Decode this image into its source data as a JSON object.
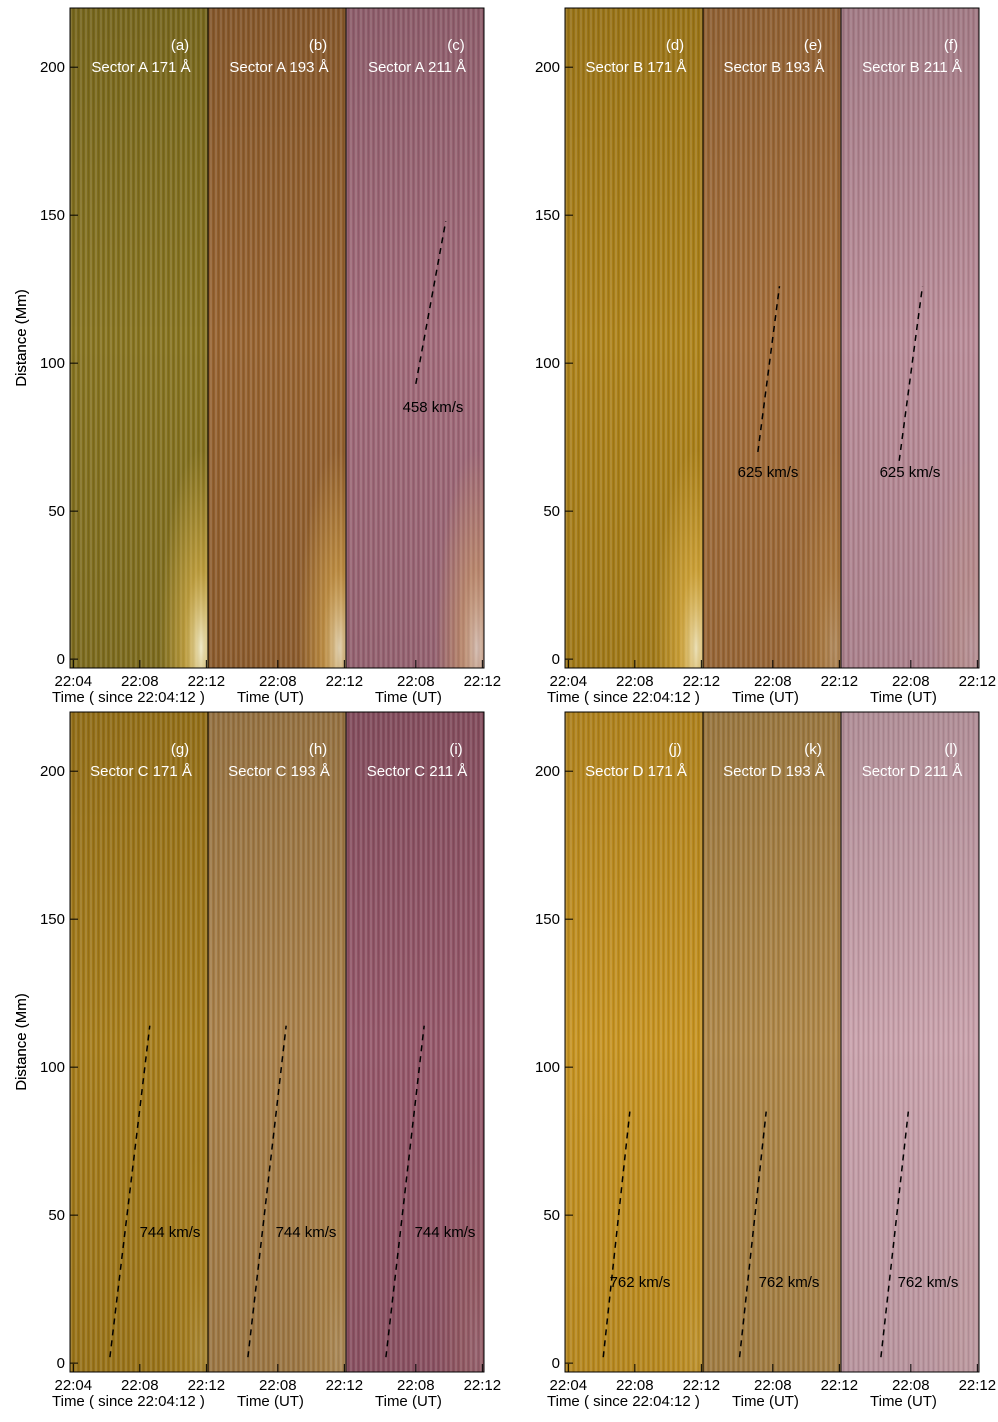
{
  "chart_data": [
    {
      "type": "line",
      "panel_label": "(a)",
      "title": "Sector A 171 Å",
      "ylabel": "Distance (Mm)",
      "xlabel": "Time ( since 22:04:12 )",
      "xlim": [
        -0.2,
        8.1
      ],
      "ylim": [
        -3,
        220
      ],
      "xticks": [
        {
          "value": 0,
          "label": "22:04"
        },
        {
          "value": 4,
          "label": "22:08"
        },
        {
          "value": 8,
          "label": "22:12"
        }
      ],
      "yticks": [
        0,
        50,
        100,
        150,
        200
      ]
    },
    {
      "type": "line",
      "panel_label": "(b)",
      "title": "Sector A 193 Å",
      "xlabel": "Time (UT)",
      "xlim": [
        -0.2,
        8.1
      ],
      "ylim": [
        -3,
        220
      ],
      "xticks": [
        {
          "value": 4,
          "label": "22:08"
        },
        {
          "value": 8,
          "label": "22:12"
        }
      ]
    },
    {
      "type": "line",
      "panel_label": "(c)",
      "title": "Sector A 211 Å",
      "xlabel": "Time (UT)",
      "xlim": [
        -0.2,
        8.1
      ],
      "ylim": [
        -3,
        220
      ],
      "xticks": [
        {
          "value": 4,
          "label": "22:08"
        },
        {
          "value": 8,
          "label": "22:12"
        }
      ],
      "series": [
        {
          "x": [
            4.0,
            5.8
          ],
          "values": [
            93,
            148
          ],
          "color": "#000000",
          "dashed": true
        }
      ],
      "annotation": "458 km/s"
    },
    {
      "type": "line",
      "panel_label": "(d)",
      "title": "Sector B 171 Å",
      "ylabel": "Distance (Mm)",
      "xlabel": "Time ( since 22:04:12 )",
      "xlim": [
        -0.2,
        8.1
      ],
      "ylim": [
        -3,
        220
      ],
      "xticks": [
        {
          "value": 0,
          "label": "22:04"
        },
        {
          "value": 4,
          "label": "22:08"
        },
        {
          "value": 8,
          "label": "22:12"
        }
      ],
      "yticks": [
        0,
        50,
        100,
        150,
        200
      ]
    },
    {
      "type": "line",
      "panel_label": "(e)",
      "title": "Sector B 193 Å",
      "xlabel": "Time (UT)",
      "xlim": [
        -0.2,
        8.1
      ],
      "ylim": [
        -3,
        220
      ],
      "xticks": [
        {
          "value": 4,
          "label": "22:08"
        },
        {
          "value": 8,
          "label": "22:12"
        }
      ],
      "series": [
        {
          "x": [
            3.1,
            4.4
          ],
          "values": [
            70,
            126
          ],
          "color": "#000000",
          "dashed": true
        }
      ],
      "annotation": "625 km/s"
    },
    {
      "type": "line",
      "panel_label": "(f)",
      "title": "Sector B 211 Å",
      "xlabel": "Time (UT)",
      "xlim": [
        -0.2,
        8.1
      ],
      "ylim": [
        -3,
        220
      ],
      "xticks": [
        {
          "value": 4,
          "label": "22:08"
        },
        {
          "value": 8,
          "label": "22:12"
        }
      ],
      "series": [
        {
          "x": [
            3.3,
            4.7
          ],
          "values": [
            67,
            126
          ],
          "color": "#000000",
          "dashed": true
        }
      ],
      "annotation": "625 km/s"
    },
    {
      "type": "line",
      "panel_label": "(g)",
      "title": "Sector C 171 Å",
      "ylabel": "Distance (Mm)",
      "xlabel": "Time ( since 22:04:12 )",
      "xlim": [
        -0.2,
        8.1
      ],
      "ylim": [
        -3,
        220
      ],
      "xticks": [
        {
          "value": 0,
          "label": "22:04"
        },
        {
          "value": 4,
          "label": "22:08"
        },
        {
          "value": 8,
          "label": "22:12"
        }
      ],
      "yticks": [
        0,
        50,
        100,
        150,
        200
      ],
      "series": [
        {
          "x": [
            2.2,
            4.6
          ],
          "values": [
            2,
            114
          ],
          "color": "#000000",
          "dashed": true
        }
      ],
      "annotation": "744 km/s"
    },
    {
      "type": "line",
      "panel_label": "(h)",
      "title": "Sector C 193 Å",
      "xlabel": "Time (UT)",
      "xlim": [
        -0.2,
        8.1
      ],
      "ylim": [
        -3,
        220
      ],
      "xticks": [
        {
          "value": 4,
          "label": "22:08"
        },
        {
          "value": 8,
          "label": "22:12"
        }
      ],
      "series": [
        {
          "x": [
            2.2,
            4.5
          ],
          "values": [
            2,
            114
          ],
          "color": "#000000",
          "dashed": true
        }
      ],
      "annotation": "744 km/s"
    },
    {
      "type": "line",
      "panel_label": "(i)",
      "title": "Sector C 211 Å",
      "xlabel": "Time (UT)",
      "xlim": [
        -0.2,
        8.1
      ],
      "ylim": [
        -3,
        220
      ],
      "xticks": [
        {
          "value": 4,
          "label": "22:08"
        },
        {
          "value": 8,
          "label": "22:12"
        }
      ],
      "series": [
        {
          "x": [
            2.2,
            4.5
          ],
          "values": [
            2,
            114
          ],
          "color": "#000000",
          "dashed": true
        }
      ],
      "annotation": "744 km/s"
    },
    {
      "type": "line",
      "panel_label": "(j)",
      "title": "Sector D 171 Å",
      "ylabel": "Distance (Mm)",
      "xlabel": "Time ( since 22:04:12 )",
      "xlim": [
        -0.2,
        8.1
      ],
      "ylim": [
        -3,
        220
      ],
      "xticks": [
        {
          "value": 0,
          "label": "22:04"
        },
        {
          "value": 4,
          "label": "22:08"
        },
        {
          "value": 8,
          "label": "22:12"
        }
      ],
      "yticks": [
        0,
        50,
        100,
        150,
        200
      ],
      "series": [
        {
          "x": [
            2.1,
            3.7
          ],
          "values": [
            2,
            85
          ],
          "color": "#000000",
          "dashed": true
        }
      ],
      "annotation": "762 km/s"
    },
    {
      "type": "line",
      "panel_label": "(k)",
      "title": "Sector D 193 Å",
      "xlabel": "Time (UT)",
      "xlim": [
        -0.2,
        8.1
      ],
      "ylim": [
        -3,
        220
      ],
      "xticks": [
        {
          "value": 4,
          "label": "22:08"
        },
        {
          "value": 8,
          "label": "22:12"
        }
      ],
      "series": [
        {
          "x": [
            2.0,
            3.6
          ],
          "values": [
            2,
            85
          ],
          "color": "#000000",
          "dashed": true
        }
      ],
      "annotation": "762 km/s"
    },
    {
      "type": "line",
      "panel_label": "(l)",
      "title": "Sector D 211 Å",
      "xlabel": "Time (UT)",
      "xlim": [
        -0.2,
        8.1
      ],
      "ylim": [
        -3,
        220
      ],
      "xticks": [
        {
          "value": 4,
          "label": "22:08"
        },
        {
          "value": 8,
          "label": "22:12"
        }
      ],
      "series": [
        {
          "x": [
            2.2,
            3.85
          ],
          "values": [
            2,
            85
          ],
          "color": "#000000",
          "dashed": true
        }
      ],
      "annotation": "762 km/s"
    }
  ]
}
